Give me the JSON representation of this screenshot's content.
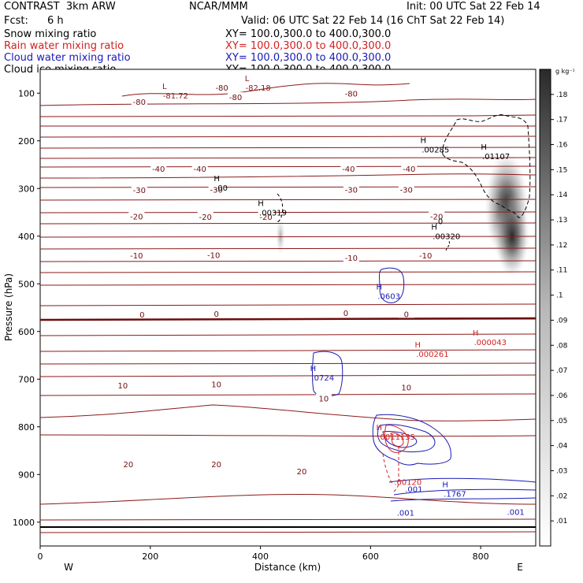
{
  "header": {
    "model": "CONTRAST  3km ARW",
    "org": "NCAR/MMM",
    "init": "Init: 00 UTC Sat 22 Feb 14",
    "fcst_label": "Fcst:",
    "fcst_value": "6 h",
    "valid": "Valid: 06 UTC Sat 22 Feb 14 (16 ChT Sat 22 Feb 14)"
  },
  "legend": [
    {
      "name": "Snow mixing ratio",
      "xsect": "XY= 100.0,300.0 to 400.0,300.0",
      "color": "#000000"
    },
    {
      "name": "Rain water mixing ratio",
      "xsect": "XY= 100.0,300.0 to 400.0,300.0",
      "color": "#d42020"
    },
    {
      "name": "Cloud water mixing ratio",
      "xsect": "XY= 100.0,300.0 to 400.0,300.0",
      "color": "#1a1ab4"
    },
    {
      "name": "Cloud ice mixing ratio",
      "xsect": "XY= 100.0,300.0 to 400.0,300.0",
      "color": "#000000"
    }
  ],
  "chart_data": {
    "type": "contour",
    "xlabel": "Distance (km)",
    "ylabel": "Pressure (hPa)",
    "xlim": [
      0,
      900
    ],
    "ylim": [
      1050,
      50
    ],
    "xticks": [
      0,
      200,
      400,
      600,
      800
    ],
    "yticks": [
      100,
      200,
      300,
      400,
      500,
      600,
      700,
      800,
      900,
      1000
    ],
    "x_end_labels": {
      "left": "W",
      "right": "E"
    },
    "colorbar": {
      "unit": "g kg⁻¹",
      "ticks": [
        ".01",
        ".02",
        ".03",
        ".04",
        ".05",
        ".06",
        ".07",
        ".08",
        ".09",
        ".1",
        ".11",
        ".12",
        ".13",
        ".14",
        ".15",
        ".16",
        ".17",
        ".18"
      ]
    },
    "temperature_labels": [
      {
        "x": 180,
        "p": 118,
        "text": "-80"
      },
      {
        "x": 355,
        "p": 108,
        "text": "-80"
      },
      {
        "x": 330,
        "p": 88,
        "text": "-80"
      },
      {
        "x": 565,
        "p": 100,
        "text": "-80"
      },
      {
        "x": 215,
        "p": 258,
        "text": "-40"
      },
      {
        "x": 290,
        "p": 258,
        "text": "-40"
      },
      {
        "x": 560,
        "p": 258,
        "text": "-40"
      },
      {
        "x": 670,
        "p": 258,
        "text": "-40"
      },
      {
        "x": 180,
        "p": 303,
        "text": "-30"
      },
      {
        "x": 320,
        "p": 302,
        "text": "-30"
      },
      {
        "x": 565,
        "p": 302,
        "text": "-30"
      },
      {
        "x": 665,
        "p": 302,
        "text": "-30"
      },
      {
        "x": 175,
        "p": 358,
        "text": "-20"
      },
      {
        "x": 300,
        "p": 359,
        "text": "-20"
      },
      {
        "x": 410,
        "p": 359,
        "text": "-20"
      },
      {
        "x": 720,
        "p": 358,
        "text": "-20"
      },
      {
        "x": 175,
        "p": 440,
        "text": "-10"
      },
      {
        "x": 315,
        "p": 439,
        "text": "-10"
      },
      {
        "x": 565,
        "p": 445,
        "text": "-10"
      },
      {
        "x": 700,
        "p": 440,
        "text": "-10"
      },
      {
        "x": 185,
        "p": 564,
        "text": "0"
      },
      {
        "x": 320,
        "p": 562,
        "text": "0"
      },
      {
        "x": 555,
        "p": 561,
        "text": "0"
      },
      {
        "x": 665,
        "p": 563,
        "text": "0"
      },
      {
        "x": 150,
        "p": 713,
        "text": "10"
      },
      {
        "x": 320,
        "p": 710,
        "text": "10"
      },
      {
        "x": 515,
        "p": 740,
        "text": "10"
      },
      {
        "x": 665,
        "p": 717,
        "text": "10"
      },
      {
        "x": 160,
        "p": 878,
        "text": "20"
      },
      {
        "x": 320,
        "p": 878,
        "text": "20"
      },
      {
        "x": 475,
        "p": 893,
        "text": "20"
      }
    ],
    "extrema": [
      {
        "x": 240,
        "p": 95,
        "mark": "L",
        "value": "-81.72",
        "color": "#8b1a1a"
      },
      {
        "x": 390,
        "p": 78,
        "mark": "L",
        "value": "-82.18",
        "color": "#8b1a1a"
      },
      {
        "x": 335,
        "p": 288,
        "mark": "H",
        "value": ".00",
        "color": "#000000"
      },
      {
        "x": 415,
        "p": 340,
        "mark": "H",
        "value": ".00319",
        "color": "#000000"
      },
      {
        "x": 710,
        "p": 208,
        "mark": "H",
        "value": ".00285",
        "color": "#000000"
      },
      {
        "x": 820,
        "p": 222,
        "mark": "H",
        "value": ".01107",
        "color": "#000000"
      },
      {
        "x": 730,
        "p": 390,
        "mark": "H",
        "value": ".00320",
        "color": "#000000"
      },
      {
        "x": 630,
        "p": 515,
        "mark": "H",
        "value": ".0603",
        "color": "#1a1ab4"
      },
      {
        "x": 510,
        "p": 686,
        "mark": "H",
        "value": ".0724",
        "color": "#1a1ab4"
      },
      {
        "x": 805,
        "p": 612,
        "mark": "H",
        "value": ".000043",
        "color": "#d42020"
      },
      {
        "x": 700,
        "p": 637,
        "mark": "H",
        "value": ".000261",
        "color": "#d42020"
      },
      {
        "x": 630,
        "p": 810,
        "mark": "H",
        "value": ".0011135",
        "color": "#d42020"
      },
      {
        "x": 660,
        "p": 905,
        "mark": "",
        "value": ".00120",
        "color": "#d42020"
      },
      {
        "x": 680,
        "p": 920,
        "mark": "",
        "value": ".001",
        "color": "#1a1ab4"
      },
      {
        "x": 750,
        "p": 930,
        "mark": "H",
        "value": ".1767",
        "color": "#1a1ab4"
      },
      {
        "x": 665,
        "p": 970,
        "mark": "",
        "value": ".001",
        "color": "#1a1ab4"
      },
      {
        "x": 865,
        "p": 968,
        "mark": "",
        "value": ".001",
        "color": "#1a1ab4"
      },
      {
        "x": 735,
        "p": 358,
        "mark": "",
        "value": ".0",
        "color": "#000000"
      }
    ]
  }
}
